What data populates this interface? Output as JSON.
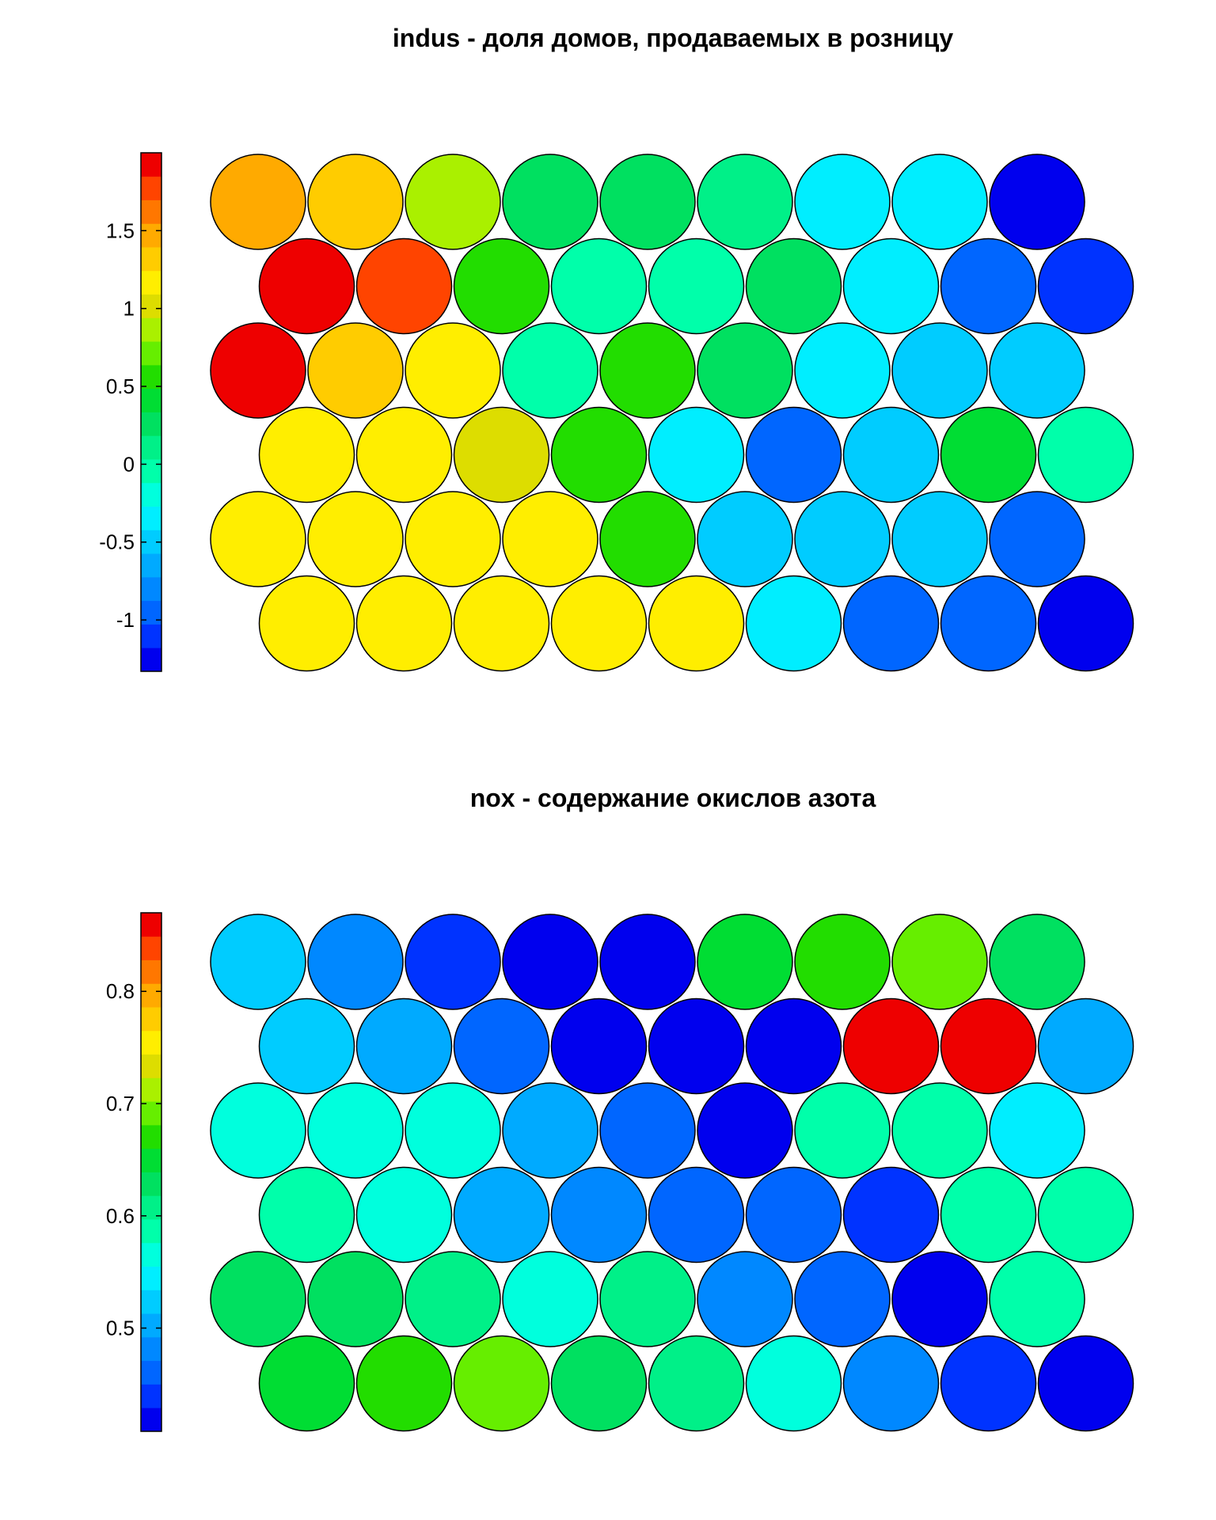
{
  "chart_data": [
    {
      "type": "heatmap",
      "layout": "hexagonal",
      "title": "indus - доля домов, продаваемых в розницу",
      "tick_labels": [
        "1.5",
        "1",
        "0.5",
        "0",
        "-0.5",
        "-1"
      ],
      "tick_values": [
        1.5,
        1.0,
        0.5,
        0.0,
        -0.5,
        -1.0
      ],
      "colorbar_range": [
        -1.33,
        2.0
      ],
      "colorbar_colors": [
        "#0000ee",
        "#0033ff",
        "#0066ff",
        "#0088ff",
        "#00aaff",
        "#00ccff",
        "#00eeff",
        "#00ffdd",
        "#00ffaa",
        "#00f088",
        "#00e060",
        "#00dd33",
        "#22dd00",
        "#66ee00",
        "#aaf000",
        "#dddd00",
        "#ffee00",
        "#ffcc00",
        "#ffaa00",
        "#ff7700",
        "#ff4400",
        "#ee0000"
      ],
      "rows": [
        {
          "offset": false,
          "values": [
            1.45,
            1.25,
            0.9,
            0.3,
            0.3,
            0.15,
            -0.4,
            -0.4,
            -1.25
          ]
        },
        {
          "offset": true,
          "values": [
            1.85,
            1.7,
            0.55,
            0.0,
            0.0,
            0.3,
            -0.3,
            -0.9,
            -1.15
          ]
        },
        {
          "offset": false,
          "values": [
            1.95,
            1.3,
            1.2,
            0.0,
            0.5,
            0.3,
            -0.3,
            -0.5,
            -0.5
          ]
        },
        {
          "offset": true,
          "values": [
            1.1,
            1.15,
            0.95,
            0.5,
            -0.4,
            -0.9,
            -0.5,
            0.4,
            0.0
          ]
        },
        {
          "offset": false,
          "values": [
            1.2,
            1.15,
            1.1,
            1.15,
            0.5,
            -0.5,
            -0.5,
            -0.5,
            -0.9
          ]
        },
        {
          "offset": true,
          "values": [
            1.1,
            1.1,
            1.15,
            1.15,
            1.2,
            -0.4,
            -0.9,
            -0.9,
            -1.25
          ]
        }
      ]
    },
    {
      "type": "heatmap",
      "layout": "hexagonal",
      "title": "nox - содержание окислов азота",
      "tick_labels": [
        "0.8",
        "0.7",
        "0.6",
        "0.5"
      ],
      "tick_values": [
        0.8,
        0.7,
        0.6,
        0.5
      ],
      "colorbar_range": [
        0.408,
        0.87
      ],
      "colorbar_colors": [
        "#0000ee",
        "#0033ff",
        "#0066ff",
        "#0088ff",
        "#00aaff",
        "#00ccff",
        "#00eeff",
        "#00ffdd",
        "#00ffaa",
        "#00f088",
        "#00e060",
        "#00dd33",
        "#22dd00",
        "#66ee00",
        "#aaf000",
        "#dddd00",
        "#ffee00",
        "#ffcc00",
        "#ffaa00",
        "#ff7700",
        "#ff4400",
        "#ee0000"
      ],
      "rows": [
        {
          "offset": false,
          "values": [
            0.53,
            0.48,
            0.43,
            0.41,
            0.41,
            0.65,
            0.68,
            0.7,
            0.62
          ]
        },
        {
          "offset": true,
          "values": [
            0.53,
            0.51,
            0.45,
            0.42,
            0.41,
            0.41,
            0.86,
            0.86,
            0.51
          ]
        },
        {
          "offset": false,
          "values": [
            0.56,
            0.56,
            0.56,
            0.51,
            0.45,
            0.42,
            0.58,
            0.58,
            0.55
          ]
        },
        {
          "offset": true,
          "values": [
            0.59,
            0.57,
            0.51,
            0.48,
            0.46,
            0.45,
            0.44,
            0.59,
            0.59
          ]
        },
        {
          "offset": false,
          "values": [
            0.63,
            0.62,
            0.6,
            0.56,
            0.61,
            0.48,
            0.46,
            0.42,
            0.58
          ]
        },
        {
          "offset": true,
          "values": [
            0.64,
            0.66,
            0.7,
            0.62,
            0.6,
            0.56,
            0.48,
            0.44,
            0.41
          ]
        }
      ]
    }
  ]
}
